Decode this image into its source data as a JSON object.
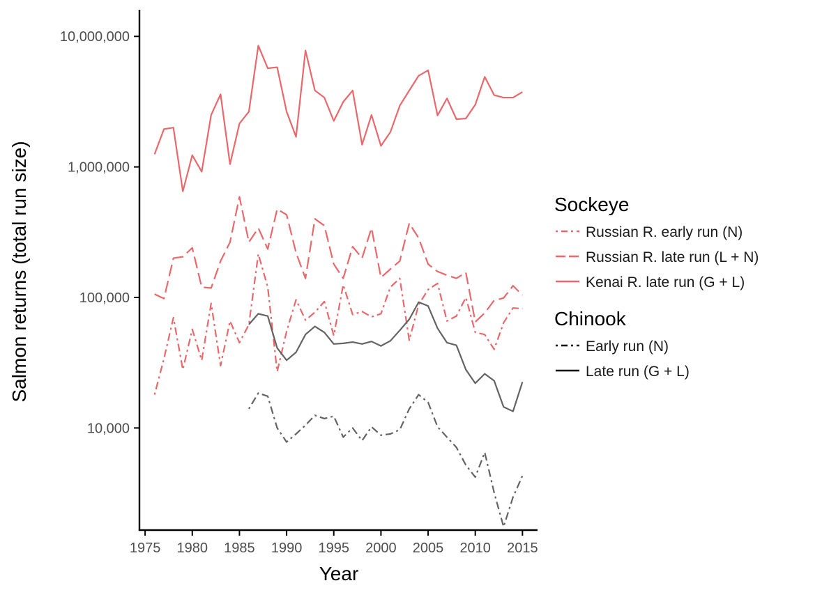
{
  "chart_data": {
    "type": "line",
    "xlabel": "Year",
    "ylabel": "Salmon returns (total run size)",
    "xlim": [
      1974.4,
      2016.6
    ],
    "ylim": [
      1650,
      16000000
    ],
    "y_scale": "log",
    "grid": false,
    "legend_position": "right",
    "x_ticks": [
      1975,
      1980,
      1985,
      1990,
      1995,
      2000,
      2005,
      2010,
      2015
    ],
    "x_tick_labels": [
      "1975",
      "1980",
      "1985",
      "1990",
      "1995",
      "2000",
      "2005",
      "2010",
      "2015"
    ],
    "y_ticks": [
      10000,
      100000,
      1000000,
      10000000
    ],
    "y_tick_labels": [
      "10,000",
      "100,000",
      "1,000,000",
      "10,000,000"
    ],
    "legend": [
      {
        "title": "Sockeye",
        "entries": [
          {
            "label": "Russian R. early run (N)",
            "series": "sock_early"
          },
          {
            "label": "Russian R. late run (L + N)",
            "series": "sock_late"
          },
          {
            "label": "Kenai R. late run (G + L)",
            "series": "kenai_late"
          }
        ]
      },
      {
        "title": "Chinook",
        "entries": [
          {
            "label": "Early run (N)",
            "series": "chin_early"
          },
          {
            "label": "Late run (G + L)",
            "series": "chin_late"
          }
        ]
      }
    ],
    "series": [
      {
        "id": "kenai_late",
        "name": "Kenai R. late run (G + L)",
        "color": "#e8686c",
        "dash": "solid",
        "x": [
          1976,
          1977,
          1978,
          1979,
          1980,
          1981,
          1982,
          1983,
          1984,
          1985,
          1986,
          1987,
          1988,
          1989,
          1990,
          1991,
          1992,
          1993,
          1994,
          1995,
          1996,
          1997,
          1998,
          1999,
          2000,
          2001,
          2002,
          2003,
          2004,
          2005,
          2006,
          2007,
          2008,
          2009,
          2010,
          2011,
          2012,
          2013,
          2014,
          2015
        ],
        "values": [
          1250000,
          1950000,
          2000000,
          650000,
          1230000,
          920000,
          2500000,
          3600000,
          1050000,
          2150000,
          2650000,
          8500000,
          5700000,
          5800000,
          2650000,
          1700000,
          7800000,
          3850000,
          3400000,
          2250000,
          3150000,
          3850000,
          1480000,
          2500000,
          1450000,
          1850000,
          2950000,
          3850000,
          5000000,
          5500000,
          2480000,
          3350000,
          2320000,
          2350000,
          3000000,
          4900000,
          3550000,
          3400000,
          3400000,
          3750000
        ]
      },
      {
        "id": "sock_late",
        "name": "Russian R. late run (L + N)",
        "color": "#e8686c",
        "dash": "long",
        "x": [
          1976,
          1977,
          1978,
          1979,
          1980,
          1981,
          1982,
          1983,
          1984,
          1985,
          1986,
          1987,
          1988,
          1989,
          1990,
          1991,
          1992,
          1993,
          1994,
          1995,
          1996,
          1997,
          1998,
          1999,
          2000,
          2001,
          2002,
          2003,
          2004,
          2005,
          2006,
          2007,
          2008,
          2009,
          2010,
          2011,
          2012,
          2013,
          2014,
          2015
        ],
        "values": [
          106000,
          98000,
          200000,
          205000,
          240000,
          120000,
          118000,
          190000,
          265000,
          590000,
          265000,
          340000,
          235000,
          475000,
          430000,
          220000,
          140000,
          400000,
          355000,
          180000,
          140000,
          245000,
          200000,
          340000,
          142000,
          165000,
          190000,
          370000,
          285000,
          180000,
          158000,
          148000,
          140000,
          155000,
          65000,
          76000,
          95000,
          99000,
          123000,
          104000
        ]
      },
      {
        "id": "sock_early",
        "name": "Russian R. early run (N)",
        "color": "#e8686c",
        "dash": "dashdot",
        "x": [
          1976,
          1977,
          1978,
          1979,
          1980,
          1981,
          1982,
          1983,
          1984,
          1985,
          1986,
          1987,
          1988,
          1989,
          1990,
          1991,
          1992,
          1993,
          1994,
          1995,
          1996,
          1997,
          1998,
          1999,
          2000,
          2001,
          2002,
          2003,
          2004,
          2005,
          2006,
          2007,
          2008,
          2009,
          2010,
          2011,
          2012,
          2013,
          2014,
          2015
        ],
        "values": [
          18000,
          34000,
          70000,
          28000,
          57000,
          33000,
          90000,
          30000,
          66000,
          45000,
          62000,
          215000,
          120000,
          27000,
          55000,
          96000,
          67000,
          77000,
          93000,
          51000,
          125000,
          74000,
          78000,
          71000,
          75000,
          120000,
          140000,
          47000,
          88000,
          115000,
          128000,
          66000,
          72000,
          100000,
          54000,
          52000,
          40000,
          64000,
          83000,
          82000
        ]
      },
      {
        "id": "chin_late",
        "name": "Late run (G + L)",
        "color": "#636363",
        "dash": "solid",
        "x": [
          1986,
          1987,
          1988,
          1989,
          1990,
          1991,
          1992,
          1993,
          1994,
          1995,
          1996,
          1997,
          1998,
          1999,
          2000,
          2001,
          2002,
          2003,
          2004,
          2005,
          2006,
          2007,
          2008,
          2009,
          2010,
          2011,
          2012,
          2013,
          2014,
          2015
        ],
        "values": [
          62000,
          75000,
          72000,
          41000,
          33000,
          38000,
          52000,
          60000,
          54000,
          44000,
          44500,
          45500,
          44000,
          46000,
          42500,
          46500,
          56000,
          68000,
          92000,
          86000,
          58000,
          45000,
          43000,
          28000,
          22000,
          26000,
          23000,
          14500,
          13400,
          22500
        ]
      },
      {
        "id": "chin_early",
        "name": "Early run (N)",
        "color": "#636363",
        "dash": "dashdot",
        "x": [
          1986,
          1987,
          1988,
          1989,
          1990,
          1991,
          1992,
          1993,
          1994,
          1995,
          1996,
          1997,
          1998,
          1999,
          2000,
          2001,
          2002,
          2003,
          2004,
          2005,
          2006,
          2007,
          2008,
          2009,
          2010,
          2011,
          2012,
          2013,
          2014,
          2015
        ],
        "values": [
          14000,
          18500,
          17500,
          10000,
          7800,
          9000,
          10500,
          12500,
          11800,
          12300,
          8500,
          10000,
          8000,
          10200,
          8800,
          9000,
          9700,
          14000,
          18000,
          15700,
          10200,
          8500,
          7100,
          5200,
          4200,
          6500,
          3200,
          1750,
          2950,
          4300
        ]
      }
    ]
  }
}
